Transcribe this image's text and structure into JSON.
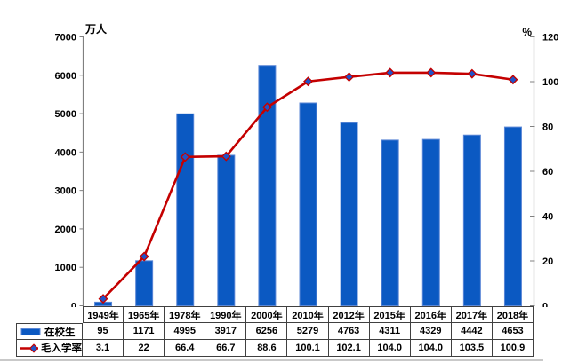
{
  "chart_data": {
    "type": "bar+line combo",
    "categories": [
      "1949年",
      "1965年",
      "1978年",
      "1990年",
      "2000年",
      "2010年",
      "2012年",
      "2015年",
      "2016年",
      "2017年",
      "2018年"
    ],
    "series": [
      {
        "name": "在校生",
        "type": "bar",
        "axis": "left",
        "values": [
          95,
          1171,
          4995,
          3917,
          6256,
          5279,
          4763,
          4311,
          4329,
          4442,
          4653
        ]
      },
      {
        "name": "毛入学率",
        "type": "line",
        "axis": "right",
        "marker": "diamond",
        "values": [
          3.1,
          22,
          66.4,
          66.7,
          88.6,
          100.1,
          102.1,
          104.0,
          104.0,
          103.5,
          100.9
        ]
      }
    ],
    "left_axis": {
      "title": "万人",
      "min": 0,
      "max": 7000,
      "step": 1000
    },
    "right_axis": {
      "title": "%",
      "min": 0,
      "max": 120,
      "step": 20
    },
    "grid": false,
    "legend_position": "table-left-column"
  },
  "table": {
    "row_labels": [
      "在校生",
      "毛入学率"
    ],
    "values_display": [
      [
        "95",
        "1171",
        "4995",
        "3917",
        "6256",
        "5279",
        "4763",
        "4311",
        "4329",
        "4442",
        "4653"
      ],
      [
        "3.1",
        "22",
        "66.4",
        "66.7",
        "88.6",
        "100.1",
        "102.1",
        "104.0",
        "104.0",
        "103.5",
        "100.9"
      ]
    ]
  },
  "colors": {
    "bar_fill": "#0b59c2",
    "bar_edge": "#5b87d6",
    "line": "#c40000",
    "marker_fill": "#2053c8",
    "marker_edge": "#c40000",
    "axis_line": "#808080",
    "table_border": "#404040",
    "text": "#000000"
  }
}
